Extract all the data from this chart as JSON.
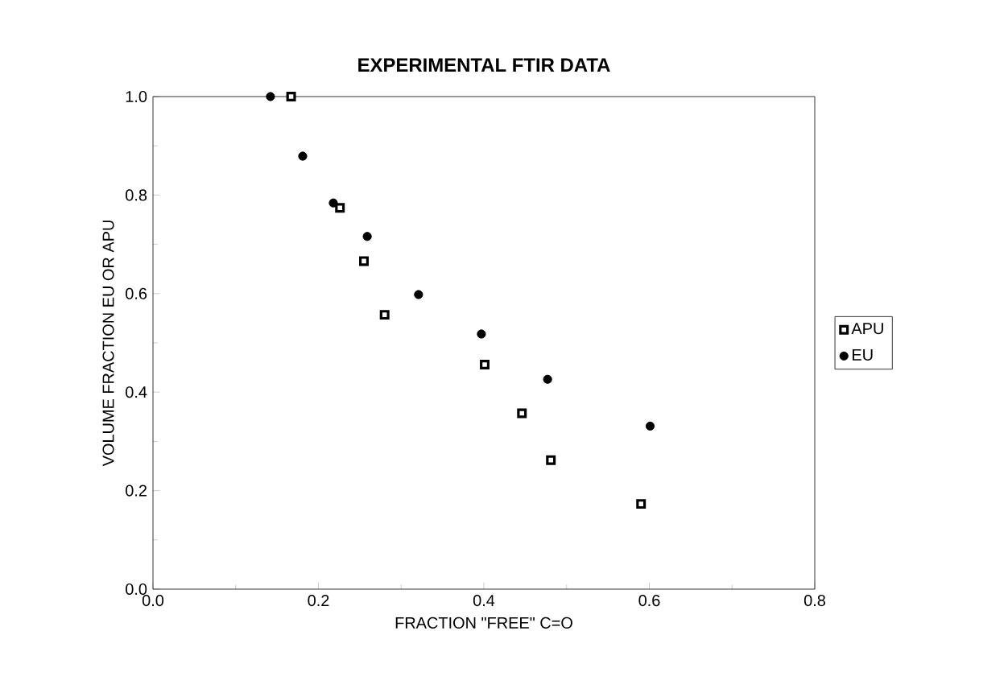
{
  "chart_data": {
    "type": "scatter",
    "title": "EXPERIMENTAL FTIR DATA",
    "xlabel": "FRACTION \"FREE\" C=O",
    "ylabel": "VOLUME FRACTION EU OR APU",
    "xlim": [
      0,
      0.8
    ],
    "ylim": [
      0,
      1
    ],
    "xticks": [
      {
        "value": 0,
        "label": "0.0"
      },
      0.2,
      0.4,
      0.6,
      0.8
    ],
    "yticks": [
      {
        "value": 0,
        "label": "0.0"
      },
      0.2,
      0.4,
      0.6,
      0.8,
      {
        "value": 1,
        "label": "1.0"
      }
    ],
    "legend": "right",
    "grid": false,
    "series": [
      {
        "name": "APU",
        "color": "#000000",
        "marker": "square",
        "x": [
          0.167,
          0.226,
          0.255,
          0.28,
          0.401,
          0.446,
          0.481,
          0.59
        ],
        "values": [
          1.0,
          0.774,
          0.666,
          0.557,
          0.456,
          0.357,
          0.262,
          0.173
        ]
      },
      {
        "name": "EU",
        "color": "#000000",
        "marker": "circle",
        "x": [
          0.142,
          0.181,
          0.218,
          0.259,
          0.321,
          0.397,
          0.477,
          0.601
        ],
        "values": [
          1.0,
          0.879,
          0.784,
          0.716,
          0.598,
          0.518,
          0.426,
          0.331
        ]
      }
    ]
  }
}
